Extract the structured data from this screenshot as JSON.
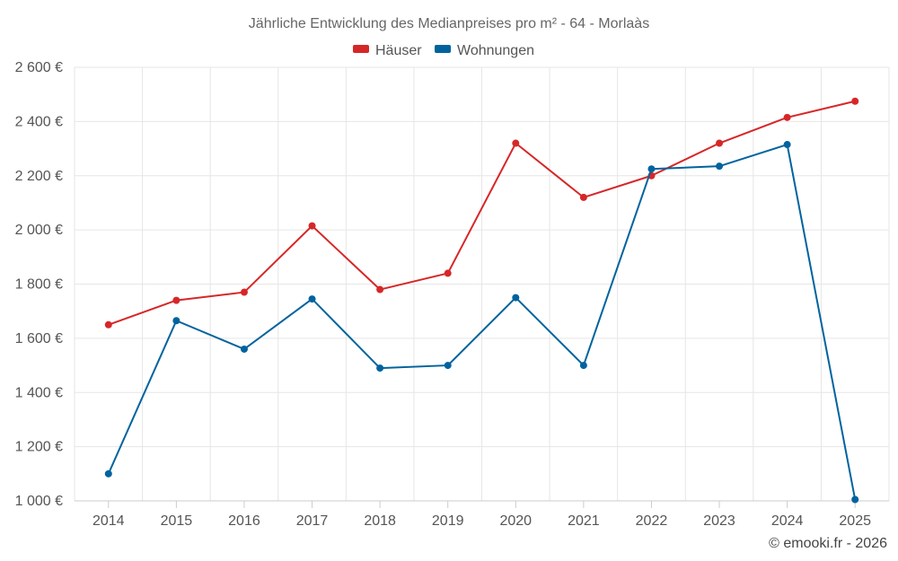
{
  "chart_data": {
    "type": "line",
    "title": "Jährliche Entwicklung des Medianpreises pro m² - 64 - Morlaàs",
    "categories": [
      "2014",
      "2015",
      "2016",
      "2017",
      "2018",
      "2019",
      "2020",
      "2021",
      "2022",
      "2023",
      "2024",
      "2025"
    ],
    "series": [
      {
        "name": "Häuser",
        "color": "#d62728",
        "values": [
          1650,
          1740,
          1770,
          2015,
          1780,
          1840,
          2320,
          2120,
          2200,
          2320,
          2415,
          2475
        ]
      },
      {
        "name": "Wohnungen",
        "color": "#00639e",
        "values": [
          1100,
          1665,
          1560,
          1745,
          1490,
          1500,
          1750,
          1500,
          2225,
          2235,
          2315,
          1005
        ]
      }
    ],
    "ylim": [
      1000,
      2600
    ],
    "yticks": [
      1000,
      1200,
      1400,
      1600,
      1800,
      2000,
      2200,
      2400,
      2600
    ],
    "ytick_labels": [
      "1 000 €",
      "1 200 €",
      "1 400 €",
      "1 600 €",
      "1 800 €",
      "2 000 €",
      "2 200 €",
      "2 400 €",
      "2 600 €"
    ],
    "grid": true,
    "legend_position": "top-center",
    "credit": "© emooki.fr - 2026"
  }
}
